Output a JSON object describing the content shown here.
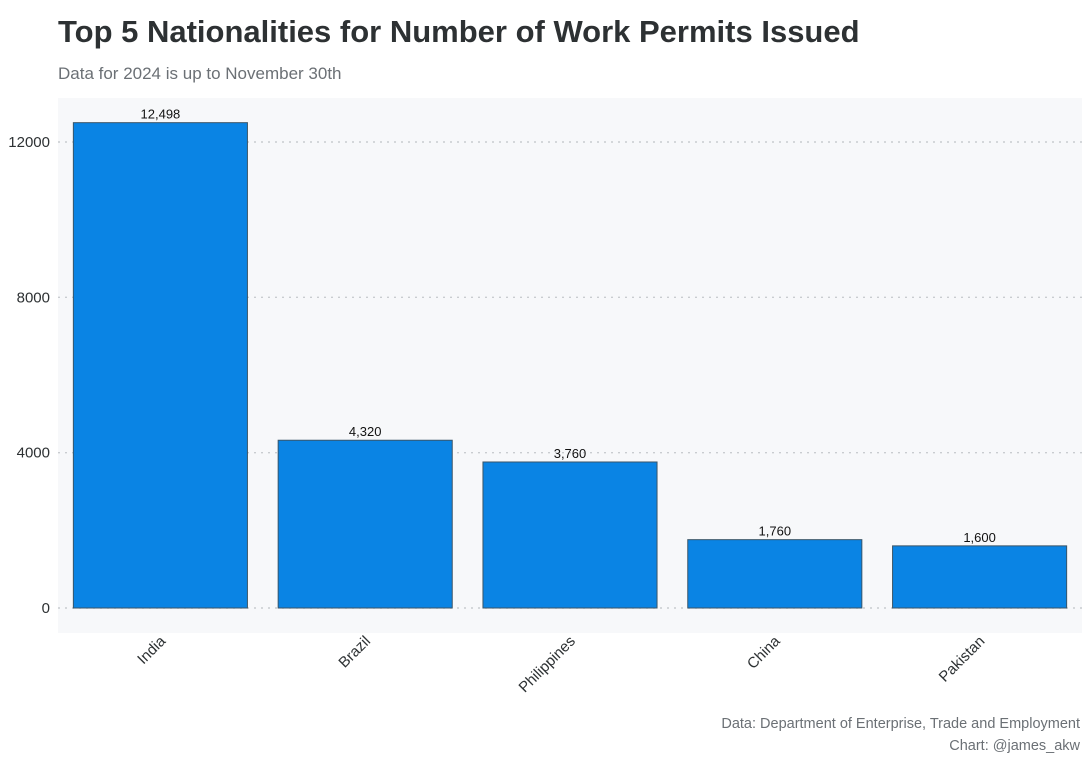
{
  "chart_data": {
    "type": "bar",
    "title": "Top 5 Nationalities for Number of Work Permits Issued",
    "subtitle": "Data for 2024 is up to November 30th",
    "categories": [
      "India",
      "Brazil",
      "Philippines",
      "China",
      "Pakistan"
    ],
    "values": [
      12498,
      4320,
      3760,
      1760,
      1600
    ],
    "value_labels": [
      "12,498",
      "4,320",
      "3,760",
      "1,760",
      "1,600"
    ],
    "y_ticks": [
      0,
      4000,
      8000,
      12000
    ],
    "y_tick_labels": [
      "0",
      "4000",
      "8000",
      "12000"
    ],
    "ylim": [
      0,
      13000
    ],
    "grid": "horizontal dotted",
    "bar_color": "#0a84e4",
    "panel_color": "#f7f8fa",
    "caption": [
      "Data: Department of Enterprise, Trade and Employment",
      "Chart: @james_akw"
    ]
  }
}
